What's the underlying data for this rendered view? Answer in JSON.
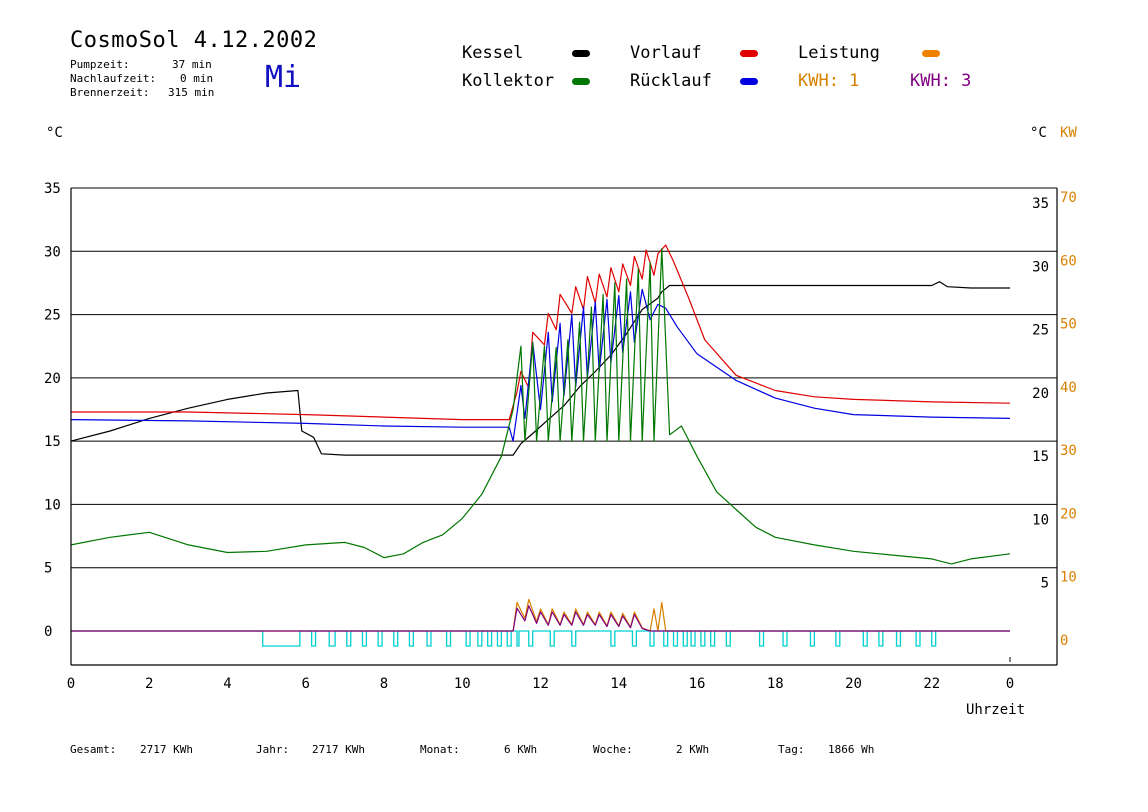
{
  "header": {
    "title": "CosmoSol 4.12.2002",
    "day": "Mi",
    "stats": [
      {
        "label": "Pumpzeit:",
        "value": "37 min"
      },
      {
        "label": "Nachlaufzeit:",
        "value": "0 min"
      },
      {
        "label": "Brennerzeit:",
        "value": "315 min"
      }
    ]
  },
  "legend": {
    "kessel": {
      "label": "Kessel",
      "color": "#000000"
    },
    "kollektor": {
      "label": "Kollektor",
      "color": "#007700"
    },
    "vorlauf": {
      "label": "Vorlauf",
      "color": "#e00000"
    },
    "ruecklauf": {
      "label": "Rücklauf",
      "color": "#0000e0"
    },
    "leistung": {
      "label": "Leistung",
      "color": "#f08000"
    },
    "kwh1": {
      "label": "KWH: 1",
      "color": "#d88000"
    },
    "kwh3": {
      "label": "KWH: 3",
      "color": "#800080"
    }
  },
  "axes": {
    "left_unit": "°C",
    "right_unit_c": "°C",
    "right_unit_kw": "KW",
    "xlabel": "Uhrzeit"
  },
  "footer": {
    "gesamt_label": "Gesamt:",
    "gesamt_value": "2717 KWh",
    "jahr_label": "Jahr:",
    "jahr_value": "2717 KWh",
    "monat_label": "Monat:",
    "monat_value": "6 KWh",
    "woche_label": "Woche:",
    "woche_value": "2 KWh",
    "tag_label": "Tag:",
    "tag_value": "1866 Wh"
  },
  "chart_data": {
    "type": "line",
    "title": "CosmoSol 4.12.2002",
    "xlabel": "Uhrzeit",
    "ylabel": "°C",
    "y2label": "KW",
    "xlim": [
      0,
      24
    ],
    "ylim": [
      0,
      35
    ],
    "y2lim": [
      0,
      70
    ],
    "x_ticks": [
      "0",
      "2",
      "4",
      "6",
      "8",
      "10",
      "12",
      "14",
      "16",
      "18",
      "20",
      "22",
      "0"
    ],
    "y_ticks": [
      "0",
      "5",
      "10",
      "15",
      "20",
      "25",
      "30",
      "35"
    ],
    "y2_ticks": [
      "0",
      "10",
      "20",
      "30",
      "40",
      "50",
      "60",
      "70"
    ],
    "grid": "horizontal",
    "series": [
      {
        "name": "Kessel",
        "color": "#000000",
        "x": [
          0,
          1,
          2,
          3,
          4,
          5,
          5.8,
          5.9,
          6.2,
          6.4,
          7,
          8,
          9,
          10,
          11,
          11.3,
          11.5,
          11.8,
          12.2,
          12.6,
          13,
          13.4,
          13.8,
          14.2,
          14.6,
          15,
          15.1,
          15.3,
          16,
          18,
          20,
          22,
          22.2,
          22.4,
          23,
          24
        ],
        "y": [
          15.0,
          15.8,
          16.8,
          17.6,
          18.3,
          18.8,
          19.0,
          15.8,
          15.3,
          14.0,
          13.9,
          13.9,
          13.9,
          13.9,
          13.9,
          13.9,
          14.8,
          15.6,
          16.7,
          17.8,
          19.3,
          20.5,
          21.8,
          23.5,
          25.4,
          26.3,
          26.8,
          27.3,
          27.3,
          27.3,
          27.3,
          27.3,
          27.6,
          27.2,
          27.1,
          27.1
        ]
      },
      {
        "name": "Vorlauf",
        "color": "#e00000",
        "x": [
          0,
          3,
          6,
          8,
          10,
          11.2,
          11.4,
          11.5,
          11.7,
          11.8,
          12.1,
          12.2,
          12.4,
          12.5,
          12.8,
          12.9,
          13.1,
          13.2,
          13.4,
          13.5,
          13.7,
          13.8,
          14.0,
          14.1,
          14.3,
          14.4,
          14.6,
          14.7,
          14.9,
          15.0,
          15.2,
          15.4,
          15.8,
          16.2,
          17,
          18,
          19,
          20,
          21,
          22,
          24
        ],
        "y": [
          17.3,
          17.3,
          17.1,
          16.9,
          16.7,
          16.7,
          18.9,
          20.5,
          19.2,
          23.6,
          22.6,
          25.1,
          23.8,
          26.6,
          25.1,
          27.2,
          25.4,
          28.0,
          25.9,
          28.2,
          26.4,
          28.7,
          26.8,
          29.0,
          27.3,
          29.6,
          27.8,
          30.1,
          28.1,
          29.8,
          30.5,
          29.2,
          26.2,
          23.0,
          20.2,
          19.0,
          18.5,
          18.3,
          18.2,
          18.1,
          18.0
        ]
      },
      {
        "name": "Rücklauf",
        "color": "#0000e0",
        "x": [
          0,
          3,
          6,
          8,
          10,
          11.2,
          11.3,
          11.5,
          11.6,
          11.8,
          12.0,
          12.2,
          12.3,
          12.5,
          12.6,
          12.8,
          12.9,
          13.1,
          13.2,
          13.4,
          13.5,
          13.7,
          13.8,
          14.0,
          14.1,
          14.3,
          14.4,
          14.6,
          14.8,
          15.0,
          15.2,
          15.5,
          16,
          17,
          18,
          19,
          20,
          22,
          24
        ],
        "y": [
          16.7,
          16.6,
          16.4,
          16.2,
          16.1,
          16.1,
          15.0,
          19.4,
          16.8,
          22.8,
          17.5,
          23.6,
          18.1,
          24.3,
          18.6,
          25.0,
          19.3,
          25.6,
          20.0,
          26.0,
          20.5,
          26.2,
          21.2,
          26.5,
          22.0,
          26.8,
          22.8,
          27.0,
          24.6,
          25.8,
          25.5,
          24.0,
          21.9,
          19.8,
          18.4,
          17.6,
          17.1,
          16.9,
          16.8
        ]
      },
      {
        "name": "Kollektor",
        "color": "#007700",
        "x": [
          0,
          1,
          2,
          3,
          4,
          5,
          6,
          7,
          7.5,
          8,
          8.5,
          9,
          9.5,
          10,
          10.5,
          11,
          11.3,
          11.5,
          11.6,
          11.8,
          11.9,
          12.1,
          12.2,
          12.4,
          12.5,
          12.7,
          12.8,
          13.0,
          13.1,
          13.3,
          13.4,
          13.6,
          13.7,
          13.9,
          14.0,
          14.2,
          14.3,
          14.5,
          14.6,
          14.8,
          14.9,
          15.1,
          15.3,
          15.6,
          16,
          16.5,
          17,
          17.5,
          18,
          19,
          20,
          21,
          22,
          22.5,
          23,
          24
        ],
        "y": [
          6.8,
          7.4,
          7.8,
          6.8,
          6.2,
          6.3,
          6.8,
          7.0,
          6.6,
          5.8,
          6.1,
          7.0,
          7.6,
          8.9,
          10.8,
          13.8,
          17.5,
          22.5,
          15.0,
          22.8,
          15.0,
          22.5,
          15.0,
          22.4,
          15.0,
          23.0,
          15.0,
          24.4,
          15.0,
          25.6,
          15.0,
          26.6,
          15.0,
          27.5,
          15.0,
          27.8,
          15.0,
          28.6,
          15.0,
          29.1,
          15.0,
          30.2,
          15.5,
          16.2,
          13.8,
          11.0,
          9.6,
          8.2,
          7.4,
          6.8,
          6.3,
          6.0,
          5.7,
          5.3,
          5.7,
          6.1
        ]
      },
      {
        "name": "Leistung",
        "color": "#d88000",
        "axis": "right",
        "x": [
          0,
          11.3,
          11.4,
          11.6,
          11.7,
          11.9,
          12.0,
          12.2,
          12.3,
          12.5,
          12.6,
          12.8,
          12.9,
          13.1,
          13.2,
          13.4,
          13.5,
          13.7,
          13.8,
          14.0,
          14.1,
          14.3,
          14.4,
          14.6,
          14.8,
          14.9,
          15.0,
          15.1,
          15.2,
          24
        ],
        "y": [
          0,
          0,
          4.5,
          2.0,
          5.0,
          1.5,
          3.5,
          1.0,
          3.5,
          1.0,
          3.0,
          1.0,
          3.5,
          1.0,
          3.0,
          1.0,
          3.0,
          0.8,
          3.0,
          0.8,
          2.8,
          0.6,
          3.0,
          0.5,
          0,
          3.5,
          0,
          4.5,
          0,
          0
        ]
      },
      {
        "name": "KWH: 3",
        "color": "#800080",
        "axis": "right",
        "x": [
          0,
          11.3,
          11.4,
          11.6,
          11.7,
          11.9,
          12.0,
          12.2,
          12.3,
          12.5,
          12.6,
          12.8,
          12.9,
          13.1,
          13.2,
          13.4,
          13.5,
          13.7,
          13.8,
          14.0,
          14.1,
          14.3,
          14.4,
          14.6,
          14.8,
          24
        ],
        "y": [
          0,
          0,
          3.6,
          1.6,
          4.0,
          1.2,
          3.0,
          0.9,
          3.0,
          0.9,
          2.6,
          0.9,
          3.0,
          0.9,
          2.6,
          0.9,
          2.6,
          0.7,
          2.6,
          0.7,
          2.4,
          0.5,
          2.6,
          0.4,
          0,
          0
        ]
      }
    ],
    "pump_pulses": {
      "color": "#00d0d0",
      "on": [
        [
          4.9,
          5.85
        ],
        [
          6.15,
          6.25
        ],
        [
          6.6,
          6.75
        ],
        [
          7.05,
          7.15
        ],
        [
          7.45,
          7.55
        ],
        [
          7.85,
          7.95
        ],
        [
          8.25,
          8.35
        ],
        [
          8.65,
          8.75
        ],
        [
          9.1,
          9.2
        ],
        [
          9.6,
          9.7
        ],
        [
          10.1,
          10.2
        ],
        [
          10.4,
          10.5
        ],
        [
          10.65,
          10.75
        ],
        [
          10.9,
          11.0
        ],
        [
          11.15,
          11.25
        ],
        [
          11.4,
          11.45
        ],
        [
          11.7,
          11.8
        ],
        [
          12.25,
          12.35
        ],
        [
          12.8,
          12.9
        ],
        [
          13.8,
          13.9
        ],
        [
          14.35,
          14.45
        ],
        [
          14.8,
          14.9
        ],
        [
          15.15,
          15.25
        ],
        [
          15.4,
          15.5
        ],
        [
          15.65,
          15.75
        ],
        [
          15.85,
          15.95
        ],
        [
          16.1,
          16.2
        ],
        [
          16.35,
          16.45
        ],
        [
          16.75,
          16.85
        ],
        [
          17.6,
          17.7
        ],
        [
          18.2,
          18.3
        ],
        [
          18.9,
          19.0
        ],
        [
          19.55,
          19.65
        ],
        [
          20.25,
          20.35
        ],
        [
          20.65,
          20.75
        ],
        [
          21.1,
          21.2
        ],
        [
          21.6,
          21.7
        ],
        [
          22.0,
          22.1
        ]
      ]
    }
  }
}
